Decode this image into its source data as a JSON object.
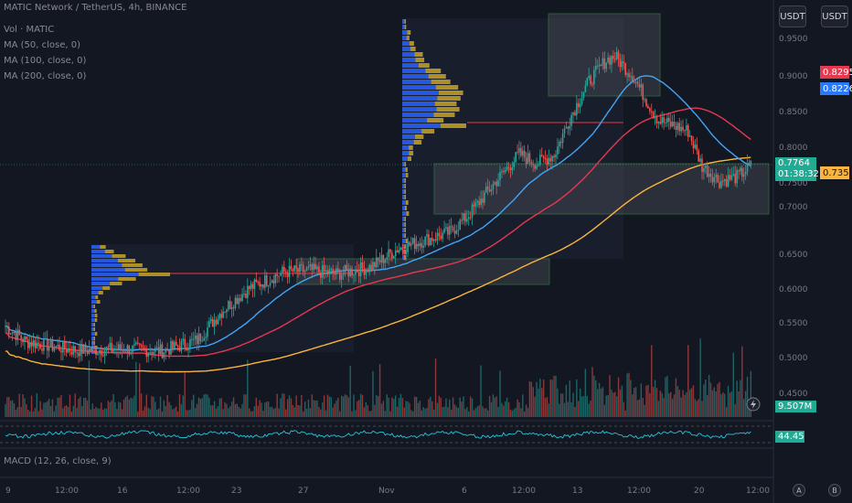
{
  "legend": {
    "symbol": "MATIC Network / TetherUS, 4h, BINANCE",
    "vol": "Vol · MATIC",
    "ma50": "MA (50, close, 0)",
    "ma100": "MA (100, close, 0)",
    "ma200": "MA (200, close, 0)",
    "macd": "MACD (12, 26, close, 9)"
  },
  "buttons": {
    "currency_1": "USDT",
    "currency_2": "USDT"
  },
  "price_axis": {
    "labels": [
      "0.9500",
      "0.9000",
      "0.8500",
      "0.8000",
      "0.7500",
      "0.7000",
      "0.6500",
      "0.6000",
      "0.5500",
      "0.5000",
      "0.4500"
    ]
  },
  "price_tags": {
    "tag_red": "0.8295",
    "tag_blue": "0.8226",
    "current_price": "0.7764",
    "countdown": "01:38:32",
    "tag_yellow": "0.7354",
    "volume": "9.507M",
    "rsi": "44.45"
  },
  "time_axis": {
    "labels": [
      "9",
      "12:00",
      "16",
      "12:00",
      "23",
      "27",
      "Nov",
      "6",
      "12:00",
      "13",
      "12:00",
      "20",
      "12:00"
    ]
  },
  "bottom_buttons": {
    "a": "A",
    "b": "B"
  },
  "colors": {
    "background": "#131722",
    "up": "#26a69a",
    "down": "#ef5350",
    "ma50": "#42a5f5",
    "ma100": "#e53950",
    "ma200": "#f9b53d",
    "vp_blue": "#2962ff",
    "vp_gold": "#c9a227"
  },
  "chart_data": {
    "type": "candlestick",
    "price_range": [
      0.44,
      0.985
    ],
    "candles": [],
    "note_series": "ohlc generated from visible trend",
    "trend_anchors": [
      [
        0,
        0.552
      ],
      [
        12,
        0.53
      ],
      [
        40,
        0.518
      ],
      [
        70,
        0.52
      ],
      [
        90,
        0.517
      ],
      [
        110,
        0.532
      ],
      [
        125,
        0.575
      ],
      [
        140,
        0.605
      ],
      [
        160,
        0.628
      ],
      [
        175,
        0.63
      ],
      [
        190,
        0.625
      ],
      [
        210,
        0.635
      ],
      [
        225,
        0.66
      ],
      [
        240,
        0.672
      ],
      [
        255,
        0.683
      ],
      [
        265,
        0.705
      ],
      [
        280,
        0.75
      ],
      [
        295,
        0.793
      ],
      [
        305,
        0.78
      ],
      [
        315,
        0.792
      ],
      [
        325,
        0.848
      ],
      [
        335,
        0.895
      ],
      [
        345,
        0.925
      ],
      [
        350,
        0.93
      ],
      [
        360,
        0.903
      ],
      [
        370,
        0.86
      ],
      [
        375,
        0.84
      ],
      [
        385,
        0.832
      ],
      [
        392,
        0.825
      ],
      [
        400,
        0.776
      ],
      [
        410,
        0.755
      ],
      [
        420,
        0.761
      ],
      [
        428,
        0.7764
      ]
    ]
  }
}
